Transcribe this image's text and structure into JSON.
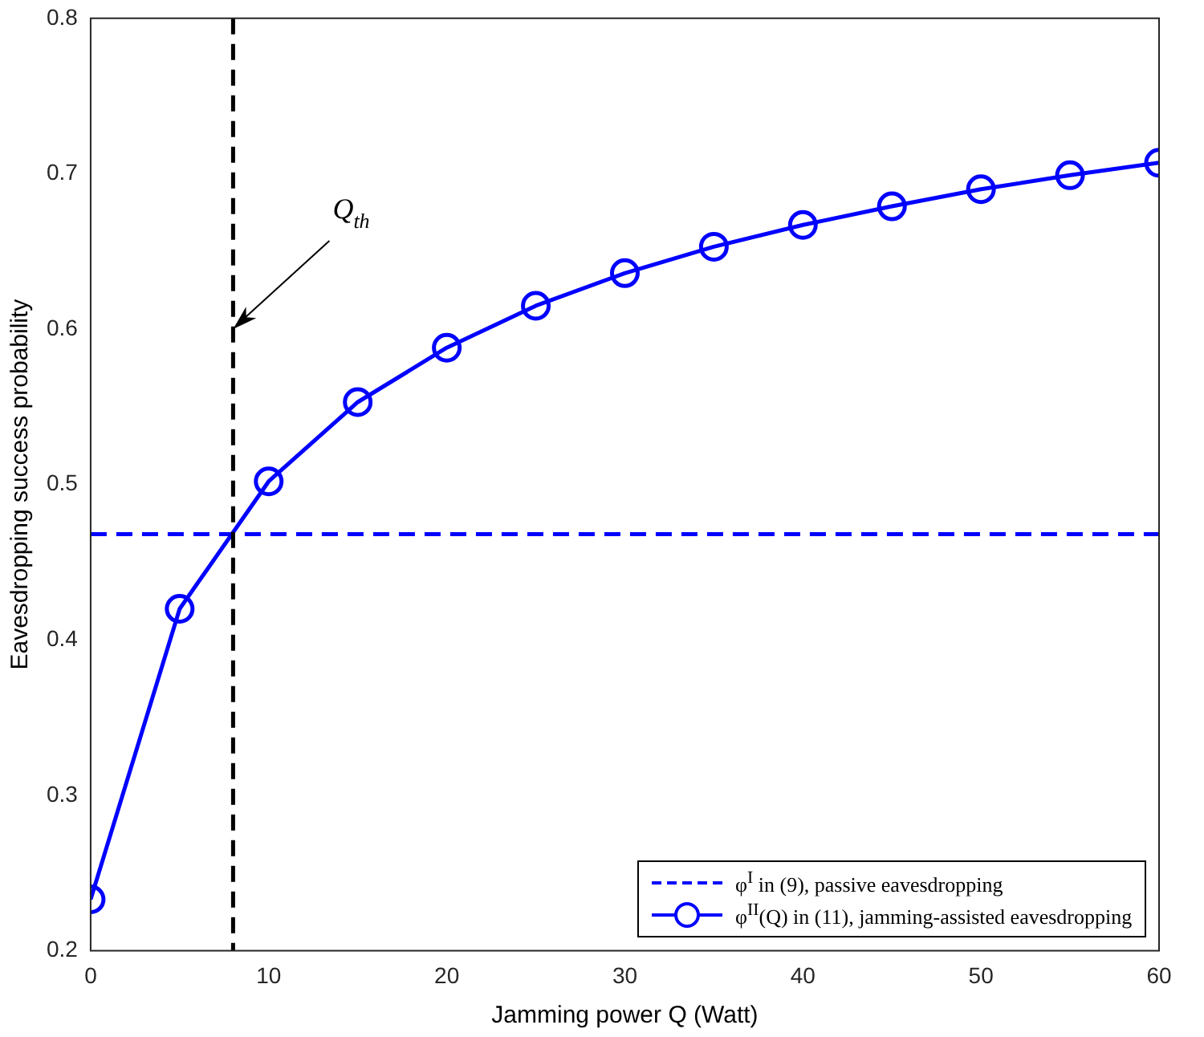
{
  "chart_data": {
    "type": "line",
    "xlabel": "Jamming power Q (Watt)",
    "ylabel": "Eavesdropping success probability",
    "xlim": [
      0,
      60
    ],
    "xticks": [
      0,
      10,
      20,
      30,
      40,
      50,
      60
    ],
    "ylim": [
      0.2,
      0.8
    ],
    "yticks": [
      0.2,
      0.3,
      0.4,
      0.5,
      0.6,
      0.7,
      0.8
    ],
    "grid": false,
    "legend": "bottom right",
    "series": [
      {
        "name": "φ$^{I}$ in (9), passive eavesdropping",
        "color": "#0000ff",
        "x": [
          0,
          60
        ],
        "values": [
          0.468,
          0.468
        ],
        "line_style": "dashed",
        "marker": "none"
      },
      {
        "name": "φ$^{II}$(Q) in (11), jamming-assisted eavesdropping",
        "color": "#0000ff",
        "x": [
          0,
          5,
          10,
          15,
          20,
          25,
          30,
          35,
          40,
          45,
          50,
          55,
          60
        ],
        "values": [
          0.233,
          0.42,
          0.502,
          0.553,
          0.588,
          0.615,
          0.636,
          0.653,
          0.667,
          0.679,
          0.69,
          0.699,
          0.707
        ],
        "line_style": "solid",
        "marker": "circle"
      }
    ],
    "ref_lines": [
      {
        "axis": "x",
        "value": 8,
        "color": "#000000",
        "line_style": "dashed"
      }
    ],
    "annotations": [
      {
        "text": "Q$_{th}$",
        "x": 8,
        "y": 0.6
      }
    ]
  }
}
